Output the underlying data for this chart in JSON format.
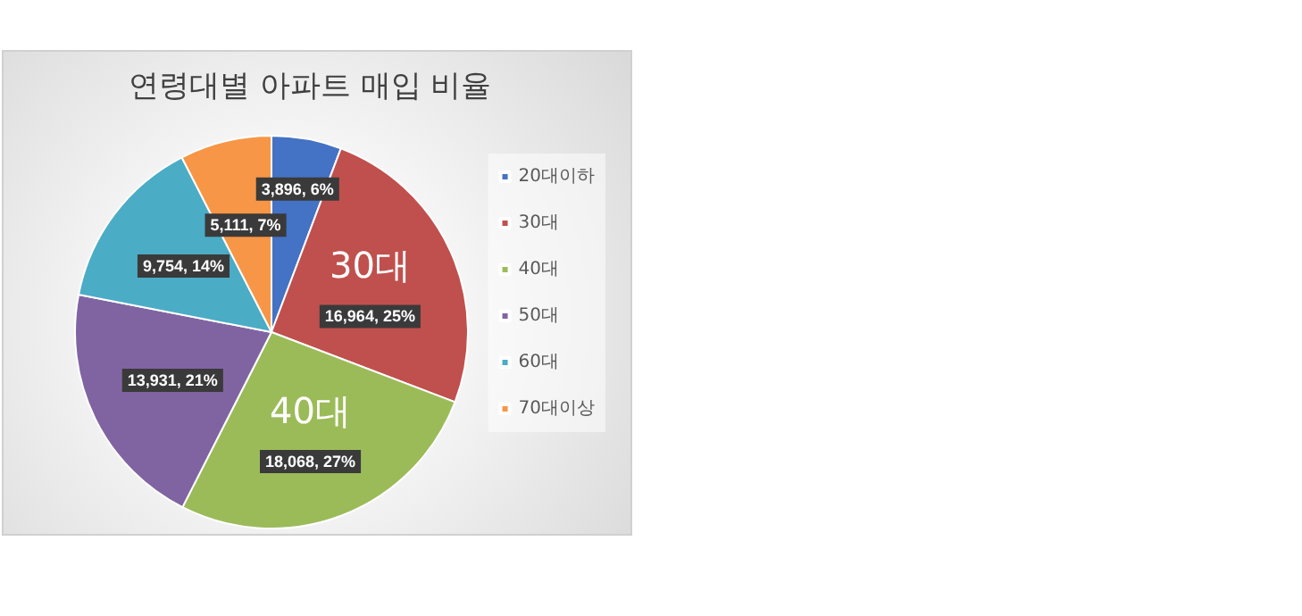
{
  "chart_data": {
    "type": "pie",
    "title": "연령대별 아파트 매입 비율",
    "categories": [
      "20대이하",
      "30대",
      "40대",
      "50대",
      "60대",
      "70대이상"
    ],
    "values": [
      3896,
      16964,
      18068,
      13931,
      9754,
      5111
    ],
    "colors": [
      "#4472c4",
      "#c0504d",
      "#9bbb59",
      "#8064a2",
      "#4bacc6",
      "#f79646"
    ],
    "value_labels": [
      "3,896, 6%",
      "16,964, 25%",
      "18,068, 27%",
      "13,931, 21%",
      "9,754, 14%",
      "5,111, 7%"
    ],
    "annotations": [
      {
        "text": "30대",
        "x": "30대"
      },
      {
        "text": "40대",
        "x": "40대"
      }
    ],
    "legend": "right"
  }
}
